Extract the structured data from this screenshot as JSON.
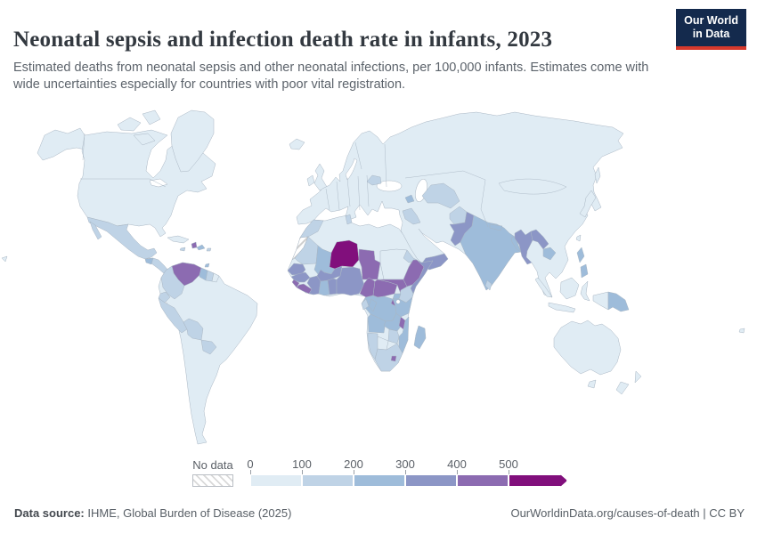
{
  "header": {
    "title": "Neonatal sepsis and infection death rate in infants, 2023",
    "subtitle": "Estimated deaths from neonatal sepsis and other neonatal infections, per 100,000 infants. Estimates come with wide uncertainties especially for countries with poor vital registration.",
    "logo": {
      "line1": "Our World",
      "line2": "in Data"
    }
  },
  "footer": {
    "source_label": "Data source:",
    "source_text": " IHME, Global Burden of Disease (2025)",
    "right_text": "OurWorldinData.org/causes-of-death | CC BY"
  },
  "legend": {
    "no_data_label": "No data",
    "tick_labels": [
      "0",
      "100",
      "200",
      "300",
      "400",
      "500"
    ]
  },
  "chart_data": {
    "type": "heatmap",
    "subtype": "world-choropleth",
    "title": "Neonatal sepsis and infection death rate in infants, 2023",
    "unit": "deaths per 100,000 infants",
    "year": 2023,
    "legend_ticks": [
      0,
      100,
      200,
      300,
      400,
      500
    ],
    "bins": [
      {
        "range": "0-100",
        "color": "#e0ecf4"
      },
      {
        "range": "100-200",
        "color": "#bfd3e6"
      },
      {
        "range": "200-300",
        "color": "#9ebcda"
      },
      {
        "range": "300-400",
        "color": "#8c96c6"
      },
      {
        "range": "400-500",
        "color": "#8c6bb1"
      },
      {
        "range": "500+",
        "color": "#810f7c"
      }
    ],
    "no_data_regions": [
      "western-sahara"
    ],
    "country_bins": {
      "north-america": 0,
      "alaska": 0,
      "greenland": 0,
      "arctic-islands-1": 0,
      "arctic-islands-2": 0,
      "arctic-islands-3": 0,
      "iceland": 0,
      "uk": 0,
      "ireland": 0,
      "eurasia": 0,
      "japan": 0,
      "sakhalin": 0,
      "cuba": 0,
      "south-america": 0,
      "french-guiana": 0,
      "sumatra": 0,
      "java": 0,
      "borneo": 0,
      "sulawesi": 0,
      "new-guinea-west": 0,
      "australia": 0,
      "tasmania": 0,
      "new-zealand-north": 0,
      "new-zealand-south": 0,
      "africa": 0,
      "sudan": 0,
      "taiwan": 0,
      "hawaii": 0,
      "fiji": 0,
      "morocco": 1,
      "tunisia": 1,
      "mauritania": 1,
      "eritrea": 1,
      "kenya": 1,
      "gabon": 1,
      "namibia": 1,
      "zimbabwe": 1,
      "south-africa": 1,
      "mexico": 1,
      "baja": 1,
      "central-america": 1,
      "jamaica": 1,
      "puerto-rico": 1,
      "colombia": 1,
      "ecuador": 1,
      "peru": 1,
      "bolivia": 1,
      "paraguay": 1,
      "suriname": 1,
      "romania": 1,
      "iraq": 1,
      "uzbekistan-turkmenistan": 1,
      "afghanistan": 1,
      "sri-lanka": 1,
      "botswana": 0,
      "guatemala": 2,
      "dominican-republic": 2,
      "guyana": 2,
      "trinidad": 2,
      "mali": 2,
      "ghana": 2,
      "uganda": 2,
      "dr-congo": 2,
      "congo": 2,
      "angola": 2,
      "zambia": 2,
      "tanzania": 2,
      "mozambique": 2,
      "madagascar": 2,
      "azerbaijan": 2,
      "india": 2,
      "nepal": 2,
      "bangladesh": 2,
      "cambodia": 2,
      "philippines-north": 2,
      "philippines-south": 2,
      "papua-new-guinea": 2,
      "senegal": 3,
      "guinea": 3,
      "burkina-faso": 3,
      "cote-divoire": 3,
      "togo-benin": 3,
      "nigeria": 3,
      "somalia": 3,
      "yemen": 3,
      "pakistan": 3,
      "myanmar": 3,
      "laos": 3,
      "sierra-leone": 4,
      "liberia": 4,
      "cameroon": 4,
      "chad": 4,
      "central-african-republic": 4,
      "south-sudan": 4,
      "ethiopia": 4,
      "rwanda-burundi": 4,
      "malawi": 4,
      "haiti": 4,
      "venezuela": 4,
      "lesotho": 4,
      "niger": 5
    }
  }
}
